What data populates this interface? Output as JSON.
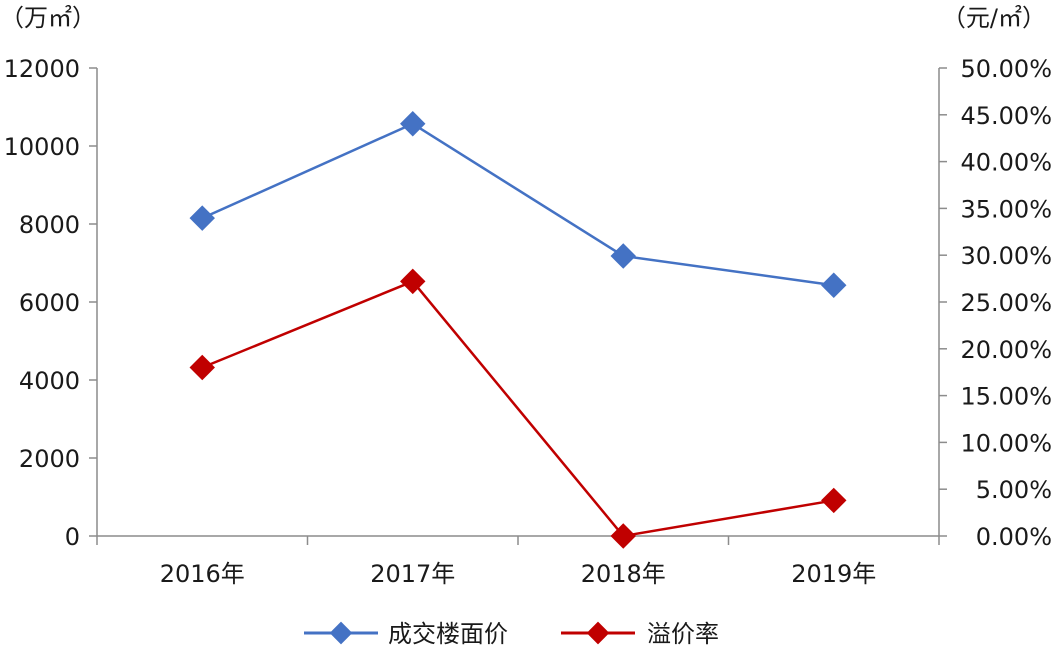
{
  "chart_data": {
    "type": "line",
    "categories": [
      "2016年",
      "2017年",
      "2018年",
      "2019年"
    ],
    "left_axis": {
      "unit_label": "（万㎡）",
      "ylim": [
        0,
        12000
      ],
      "ticks": [
        "0",
        "2000",
        "4000",
        "6000",
        "8000",
        "10000",
        "12000"
      ]
    },
    "right_axis": {
      "unit_label": "（元/㎡）",
      "ylim": [
        0,
        0.5
      ],
      "ticks": [
        "0.00%",
        "5.00%",
        "10.00%",
        "15.00%",
        "20.00%",
        "25.00%",
        "30.00%",
        "35.00%",
        "40.00%",
        "45.00%",
        "50.00%"
      ]
    },
    "series": [
      {
        "name": "成交楼面价",
        "axis": "left",
        "color": "#4472C4",
        "values": [
          8150,
          10570,
          7180,
          6430
        ]
      },
      {
        "name": "溢价率",
        "axis": "right",
        "color": "#C00000",
        "values": [
          0.18,
          0.272,
          0.0,
          0.038
        ]
      }
    ],
    "grid": false,
    "legend_position": "bottom"
  }
}
